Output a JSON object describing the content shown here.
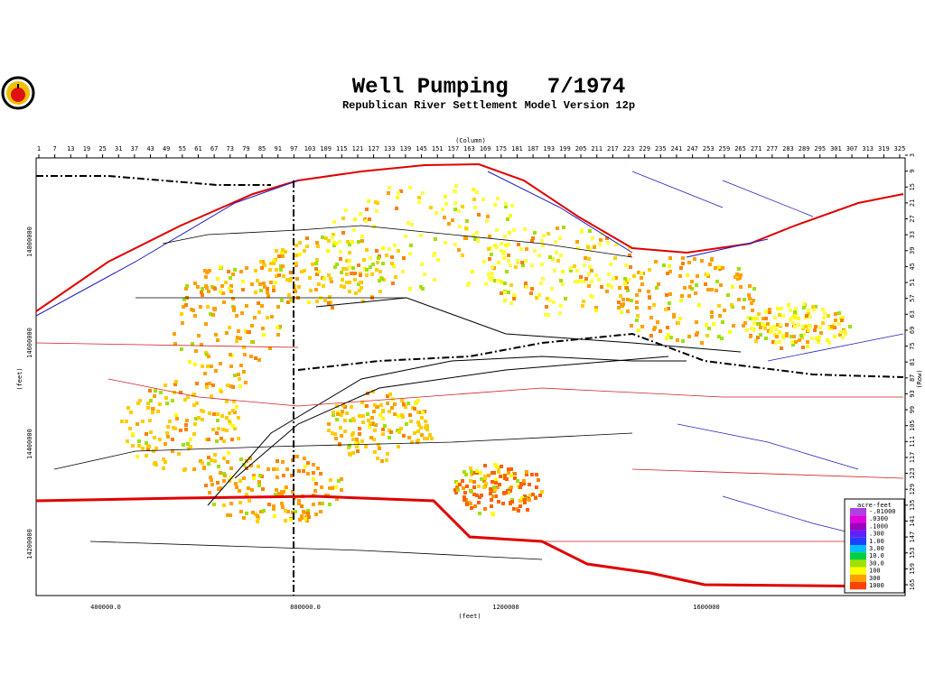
{
  "header": {
    "title": "Well Pumping   7/1974",
    "subtitle": "Republican River Settlement Model Version 12p"
  },
  "map": {
    "column_label": "(Column)",
    "columns": [
      1,
      7,
      13,
      19,
      25,
      31,
      37,
      43,
      49,
      55,
      61,
      67,
      73,
      79,
      85,
      91,
      97,
      103,
      109,
      115,
      121,
      127,
      133,
      139,
      145,
      151,
      157,
      163,
      169,
      175,
      181,
      187,
      193,
      199,
      205,
      211,
      217,
      223,
      229,
      235,
      241,
      247,
      253,
      259,
      265,
      271,
      277,
      283,
      289,
      295,
      301,
      307,
      313,
      319,
      325
    ],
    "row_label": "(Row)",
    "rows": [
      3,
      9,
      15,
      21,
      27,
      33,
      39,
      45,
      51,
      57,
      63,
      69,
      75,
      81,
      87,
      93,
      99,
      105,
      111,
      117,
      123,
      129,
      135,
      141,
      147,
      153,
      159,
      165
    ],
    "x_label": "(feet)",
    "x_ticks": [
      "400000.0",
      "800000.0",
      "1200000",
      "1600000"
    ],
    "y_label": "(feet)",
    "y_ticks": [
      "14800000",
      "14600000",
      "14400000",
      "14200000"
    ]
  },
  "legend": {
    "title": "acre-feet",
    "entries": [
      {
        "label": "-.01000",
        "color": "#b040e0"
      },
      {
        "label": ".0300",
        "color": "#e000e0"
      },
      {
        "label": ".1000",
        "color": "#a000c0"
      },
      {
        "label": ".300",
        "color": "#6020ff"
      },
      {
        "label": "1.00",
        "color": "#2040ff"
      },
      {
        "label": "3.00",
        "color": "#00c0ff"
      },
      {
        "label": "10.0",
        "color": "#00d040"
      },
      {
        "label": "30.0",
        "color": "#a0e000"
      },
      {
        "label": "100",
        "color": "#ffff00"
      },
      {
        "label": "300",
        "color": "#ffa000"
      },
      {
        "label": "1000",
        "color": "#ff4000"
      }
    ]
  }
}
